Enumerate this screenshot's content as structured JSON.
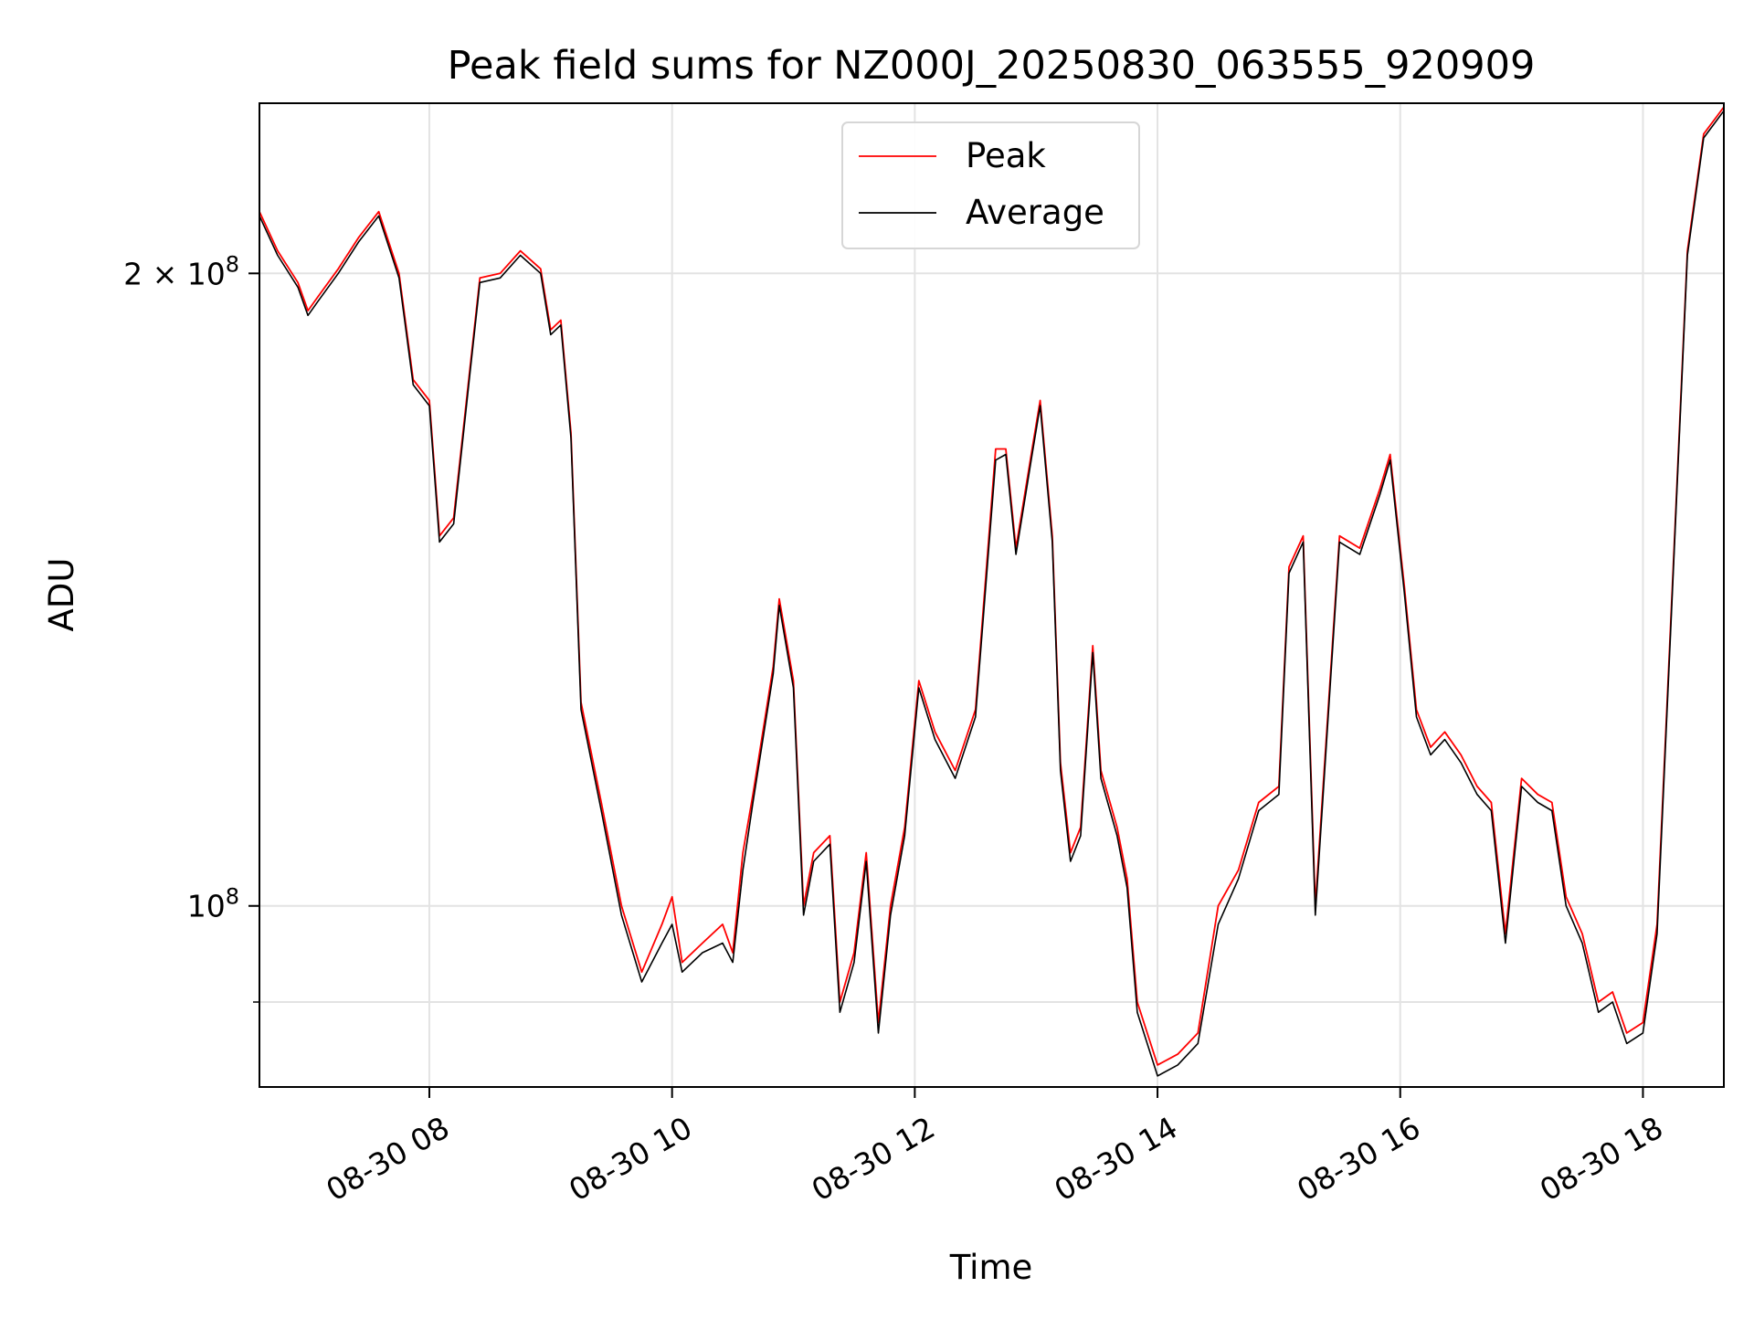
{
  "chart_data": {
    "type": "line",
    "title": "Peak field sums for NZ000J_20250830_063555_920909",
    "xlabel": "Time",
    "ylabel": "ADU",
    "x_axis_type": "datetime",
    "x_range": [
      "2025-08-30T06:36",
      "2025-08-30T18:40"
    ],
    "y_scale": "log",
    "ylim": [
      82000000,
      241000000
    ],
    "x_ticks": [
      {
        "value": "2025-08-30T08:00",
        "label": "08-30 08"
      },
      {
        "value": "2025-08-30T10:00",
        "label": "08-30 10"
      },
      {
        "value": "2025-08-30T12:00",
        "label": "08-30 12"
      },
      {
        "value": "2025-08-30T14:00",
        "label": "08-30 14"
      },
      {
        "value": "2025-08-30T16:00",
        "label": "08-30 16"
      },
      {
        "value": "2025-08-30T18:00",
        "label": "08-30 18"
      }
    ],
    "y_ticks": [
      {
        "value": 100000000,
        "mantissa": "",
        "exponent": "8"
      },
      {
        "value": 200000000,
        "mantissa": "2",
        "exponent": "8"
      }
    ],
    "y_minor_ticks": [
      90000000
    ],
    "grid": true,
    "legend": "upper-center",
    "series": [
      {
        "name": "Peak",
        "color": "#ff0000",
        "points": [
          [
            "2025-08-30T06:36",
            214000000
          ],
          [
            "2025-08-30T06:45",
            205000000
          ],
          [
            "2025-08-30T06:55",
            198000000
          ],
          [
            "2025-08-30T07:00",
            192000000
          ],
          [
            "2025-08-30T07:05",
            195000000
          ],
          [
            "2025-08-30T07:15",
            201000000
          ],
          [
            "2025-08-30T07:25",
            208000000
          ],
          [
            "2025-08-30T07:35",
            214000000
          ],
          [
            "2025-08-30T07:45",
            200000000
          ],
          [
            "2025-08-30T07:52",
            178000000
          ],
          [
            "2025-08-30T08:00",
            174000000
          ],
          [
            "2025-08-30T08:05",
            150000000
          ],
          [
            "2025-08-30T08:12",
            153000000
          ],
          [
            "2025-08-30T08:20",
            180000000
          ],
          [
            "2025-08-30T08:25",
            199000000
          ],
          [
            "2025-08-30T08:35",
            200000000
          ],
          [
            "2025-08-30T08:45",
            205000000
          ],
          [
            "2025-08-30T08:55",
            201000000
          ],
          [
            "2025-08-30T09:00",
            188000000
          ],
          [
            "2025-08-30T09:05",
            190000000
          ],
          [
            "2025-08-30T09:10",
            168000000
          ],
          [
            "2025-08-30T09:15",
            125000000
          ],
          [
            "2025-08-30T09:25",
            112000000
          ],
          [
            "2025-08-30T09:35",
            100000000
          ],
          [
            "2025-08-30T09:45",
            93000000
          ],
          [
            "2025-08-30T09:55",
            98000000
          ],
          [
            "2025-08-30T10:00",
            101000000
          ],
          [
            "2025-08-30T10:05",
            94000000
          ],
          [
            "2025-08-30T10:15",
            96000000
          ],
          [
            "2025-08-30T10:25",
            98000000
          ],
          [
            "2025-08-30T10:30",
            95000000
          ],
          [
            "2025-08-30T10:35",
            106000000
          ],
          [
            "2025-08-30T10:40",
            113000000
          ],
          [
            "2025-08-30T10:50",
            130000000
          ],
          [
            "2025-08-30T10:53",
            140000000
          ],
          [
            "2025-08-30T11:00",
            128000000
          ],
          [
            "2025-08-30T11:05",
            100000000
          ],
          [
            "2025-08-30T11:10",
            106000000
          ],
          [
            "2025-08-30T11:18",
            108000000
          ],
          [
            "2025-08-30T11:23",
            90000000
          ],
          [
            "2025-08-30T11:30",
            95000000
          ],
          [
            "2025-08-30T11:36",
            106000000
          ],
          [
            "2025-08-30T11:42",
            88000000
          ],
          [
            "2025-08-30T11:48",
            100000000
          ],
          [
            "2025-08-30T11:55",
            109000000
          ],
          [
            "2025-08-30T12:02",
            128000000
          ],
          [
            "2025-08-30T12:10",
            121000000
          ],
          [
            "2025-08-30T12:20",
            116000000
          ],
          [
            "2025-08-30T12:30",
            124000000
          ],
          [
            "2025-08-30T12:40",
            165000000
          ],
          [
            "2025-08-30T12:45",
            165000000
          ],
          [
            "2025-08-30T12:50",
            148000000
          ],
          [
            "2025-08-30T12:58",
            165000000
          ],
          [
            "2025-08-30T13:02",
            174000000
          ],
          [
            "2025-08-30T13:08",
            150000000
          ],
          [
            "2025-08-30T13:12",
            117000000
          ],
          [
            "2025-08-30T13:17",
            106000000
          ],
          [
            "2025-08-30T13:22",
            109000000
          ],
          [
            "2025-08-30T13:28",
            133000000
          ],
          [
            "2025-08-30T13:32",
            116000000
          ],
          [
            "2025-08-30T13:40",
            109000000
          ],
          [
            "2025-08-30T13:45",
            103000000
          ],
          [
            "2025-08-30T13:50",
            90000000
          ],
          [
            "2025-08-30T14:00",
            84000000
          ],
          [
            "2025-08-30T14:10",
            85000000
          ],
          [
            "2025-08-30T14:20",
            87000000
          ],
          [
            "2025-08-30T14:30",
            100000000
          ],
          [
            "2025-08-30T14:40",
            104000000
          ],
          [
            "2025-08-30T14:50",
            112000000
          ],
          [
            "2025-08-30T15:00",
            114000000
          ],
          [
            "2025-08-30T15:05",
            145000000
          ],
          [
            "2025-08-30T15:12",
            150000000
          ],
          [
            "2025-08-30T15:18",
            100000000
          ],
          [
            "2025-08-30T15:30",
            150000000
          ],
          [
            "2025-08-30T15:40",
            148000000
          ],
          [
            "2025-08-30T15:50",
            158000000
          ],
          [
            "2025-08-30T15:55",
            164000000
          ],
          [
            "2025-08-30T16:02",
            142000000
          ],
          [
            "2025-08-30T16:08",
            124000000
          ],
          [
            "2025-08-30T16:15",
            119000000
          ],
          [
            "2025-08-30T16:22",
            121000000
          ],
          [
            "2025-08-30T16:30",
            118000000
          ],
          [
            "2025-08-30T16:38",
            114000000
          ],
          [
            "2025-08-30T16:45",
            112000000
          ],
          [
            "2025-08-30T16:52",
            97000000
          ],
          [
            "2025-08-30T17:00",
            115000000
          ],
          [
            "2025-08-30T17:08",
            113000000
          ],
          [
            "2025-08-30T17:15",
            112000000
          ],
          [
            "2025-08-30T17:22",
            101000000
          ],
          [
            "2025-08-30T17:30",
            97000000
          ],
          [
            "2025-08-30T17:38",
            90000000
          ],
          [
            "2025-08-30T17:45",
            91000000
          ],
          [
            "2025-08-30T17:52",
            87000000
          ],
          [
            "2025-08-30T18:00",
            88000000
          ],
          [
            "2025-08-30T18:07",
            98000000
          ],
          [
            "2025-08-30T18:15",
            145000000
          ],
          [
            "2025-08-30T18:22",
            205000000
          ],
          [
            "2025-08-30T18:30",
            233000000
          ],
          [
            "2025-08-30T18:40",
            240000000
          ]
        ]
      },
      {
        "name": "Average",
        "color": "#000000",
        "points": [
          [
            "2025-08-30T06:36",
            213000000
          ],
          [
            "2025-08-30T06:45",
            204000000
          ],
          [
            "2025-08-30T06:55",
            197000000
          ],
          [
            "2025-08-30T07:00",
            191000000
          ],
          [
            "2025-08-30T07:05",
            194000000
          ],
          [
            "2025-08-30T07:15",
            200000000
          ],
          [
            "2025-08-30T07:25",
            207000000
          ],
          [
            "2025-08-30T07:35",
            213000000
          ],
          [
            "2025-08-30T07:45",
            199000000
          ],
          [
            "2025-08-30T07:52",
            177000000
          ],
          [
            "2025-08-30T08:00",
            173000000
          ],
          [
            "2025-08-30T08:05",
            149000000
          ],
          [
            "2025-08-30T08:12",
            152000000
          ],
          [
            "2025-08-30T08:20",
            179000000
          ],
          [
            "2025-08-30T08:25",
            198000000
          ],
          [
            "2025-08-30T08:35",
            199000000
          ],
          [
            "2025-08-30T08:45",
            204000000
          ],
          [
            "2025-08-30T08:55",
            200000000
          ],
          [
            "2025-08-30T09:00",
            187000000
          ],
          [
            "2025-08-30T09:05",
            189000000
          ],
          [
            "2025-08-30T09:10",
            167000000
          ],
          [
            "2025-08-30T09:15",
            124000000
          ],
          [
            "2025-08-30T09:25",
            111000000
          ],
          [
            "2025-08-30T09:35",
            99000000
          ],
          [
            "2025-08-30T09:45",
            92000000
          ],
          [
            "2025-08-30T09:55",
            96000000
          ],
          [
            "2025-08-30T10:00",
            98000000
          ],
          [
            "2025-08-30T10:05",
            93000000
          ],
          [
            "2025-08-30T10:15",
            95000000
          ],
          [
            "2025-08-30T10:25",
            96000000
          ],
          [
            "2025-08-30T10:30",
            94000000
          ],
          [
            "2025-08-30T10:35",
            104000000
          ],
          [
            "2025-08-30T10:40",
            112000000
          ],
          [
            "2025-08-30T10:50",
            129000000
          ],
          [
            "2025-08-30T10:53",
            139000000
          ],
          [
            "2025-08-30T11:00",
            127000000
          ],
          [
            "2025-08-30T11:05",
            99000000
          ],
          [
            "2025-08-30T11:10",
            105000000
          ],
          [
            "2025-08-30T11:18",
            107000000
          ],
          [
            "2025-08-30T11:23",
            89000000
          ],
          [
            "2025-08-30T11:30",
            94000000
          ],
          [
            "2025-08-30T11:36",
            105000000
          ],
          [
            "2025-08-30T11:42",
            87000000
          ],
          [
            "2025-08-30T11:48",
            99000000
          ],
          [
            "2025-08-30T11:55",
            108000000
          ],
          [
            "2025-08-30T12:02",
            127000000
          ],
          [
            "2025-08-30T12:10",
            120000000
          ],
          [
            "2025-08-30T12:20",
            115000000
          ],
          [
            "2025-08-30T12:30",
            123000000
          ],
          [
            "2025-08-30T12:40",
            163000000
          ],
          [
            "2025-08-30T12:45",
            164000000
          ],
          [
            "2025-08-30T12:50",
            147000000
          ],
          [
            "2025-08-30T12:58",
            164000000
          ],
          [
            "2025-08-30T13:02",
            173000000
          ],
          [
            "2025-08-30T13:08",
            149000000
          ],
          [
            "2025-08-30T13:12",
            116000000
          ],
          [
            "2025-08-30T13:17",
            105000000
          ],
          [
            "2025-08-30T13:22",
            108000000
          ],
          [
            "2025-08-30T13:28",
            132000000
          ],
          [
            "2025-08-30T13:32",
            115000000
          ],
          [
            "2025-08-30T13:40",
            108000000
          ],
          [
            "2025-08-30T13:45",
            102000000
          ],
          [
            "2025-08-30T13:50",
            89000000
          ],
          [
            "2025-08-30T14:00",
            83000000
          ],
          [
            "2025-08-30T14:10",
            84000000
          ],
          [
            "2025-08-30T14:20",
            86000000
          ],
          [
            "2025-08-30T14:30",
            98000000
          ],
          [
            "2025-08-30T14:40",
            103000000
          ],
          [
            "2025-08-30T14:50",
            111000000
          ],
          [
            "2025-08-30T15:00",
            113000000
          ],
          [
            "2025-08-30T15:05",
            144000000
          ],
          [
            "2025-08-30T15:12",
            149000000
          ],
          [
            "2025-08-30T15:18",
            99000000
          ],
          [
            "2025-08-30T15:30",
            149000000
          ],
          [
            "2025-08-30T15:40",
            147000000
          ],
          [
            "2025-08-30T15:50",
            157000000
          ],
          [
            "2025-08-30T15:55",
            163000000
          ],
          [
            "2025-08-30T16:02",
            141000000
          ],
          [
            "2025-08-30T16:08",
            123000000
          ],
          [
            "2025-08-30T16:15",
            118000000
          ],
          [
            "2025-08-30T16:22",
            120000000
          ],
          [
            "2025-08-30T16:30",
            117000000
          ],
          [
            "2025-08-30T16:38",
            113000000
          ],
          [
            "2025-08-30T16:45",
            111000000
          ],
          [
            "2025-08-30T16:52",
            96000000
          ],
          [
            "2025-08-30T17:00",
            114000000
          ],
          [
            "2025-08-30T17:08",
            112000000
          ],
          [
            "2025-08-30T17:15",
            111000000
          ],
          [
            "2025-08-30T17:22",
            100000000
          ],
          [
            "2025-08-30T17:30",
            96000000
          ],
          [
            "2025-08-30T17:38",
            89000000
          ],
          [
            "2025-08-30T17:45",
            90000000
          ],
          [
            "2025-08-30T17:52",
            86000000
          ],
          [
            "2025-08-30T18:00",
            87000000
          ],
          [
            "2025-08-30T18:07",
            97000000
          ],
          [
            "2025-08-30T18:15",
            144000000
          ],
          [
            "2025-08-30T18:22",
            204000000
          ],
          [
            "2025-08-30T18:30",
            232000000
          ],
          [
            "2025-08-30T18:40",
            239000000
          ]
        ]
      }
    ]
  }
}
